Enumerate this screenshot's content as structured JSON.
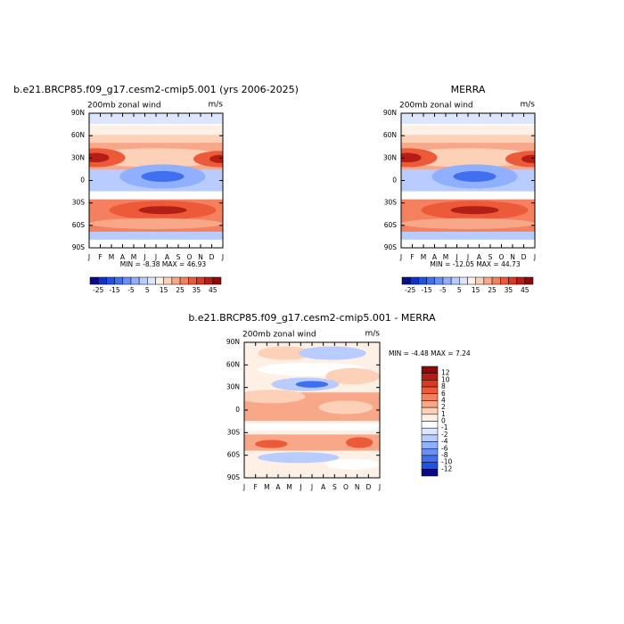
{
  "chart_data": [
    {
      "type": "contour",
      "title": "b.e21.BRCP85.f09_g17.cesm2-cmip5.001 (yrs 2006-2025)",
      "subtitle": "200mb zonal wind",
      "units": "m/s",
      "categories": [
        "J",
        "F",
        "M",
        "A",
        "M",
        "J",
        "J",
        "A",
        "S",
        "O",
        "N",
        "D",
        "J"
      ],
      "ylim": [
        -90,
        90
      ],
      "yticks": [
        {
          "value": 90,
          "label": "90N"
        },
        {
          "value": 60,
          "label": "60N"
        },
        {
          "value": 30,
          "label": "30N"
        },
        0,
        {
          "value": -30,
          "label": "30S"
        },
        {
          "value": -60,
          "label": "60S"
        },
        {
          "value": -90,
          "label": "90S"
        }
      ],
      "stats": {
        "min_label": "MIN =",
        "min": -8.38,
        "max_label": "MAX =",
        "max": 46.93
      },
      "colorbar": {
        "orientation": "horizontal",
        "labels": [
          -25,
          -15,
          -5,
          5,
          15,
          25,
          35,
          45
        ],
        "colors": [
          "#0a0a8c",
          "#1030c8",
          "#2050e8",
          "#4070f0",
          "#6a90f8",
          "#90b0ff",
          "#b8ccff",
          "#dce6ff",
          "#fff0e6",
          "#fdd0b8",
          "#f8a888",
          "#f58060",
          "#ec5a3a",
          "#d63a22",
          "#b41e14",
          "#8c0a0a"
        ]
      }
    },
    {
      "type": "contour",
      "title": "MERRA",
      "subtitle": "200mb zonal wind",
      "units": "m/s",
      "categories": [
        "J",
        "F",
        "M",
        "A",
        "M",
        "J",
        "J",
        "A",
        "S",
        "O",
        "N",
        "D",
        "J"
      ],
      "ylim": [
        -90,
        90
      ],
      "yticks": [
        {
          "value": 90,
          "label": "90N"
        },
        {
          "value": 60,
          "label": "60N"
        },
        {
          "value": 30,
          "label": "30N"
        },
        0,
        {
          "value": -30,
          "label": "30S"
        },
        {
          "value": -60,
          "label": "60S"
        },
        {
          "value": -90,
          "label": "90S"
        }
      ],
      "stats": {
        "min_label": "MIN =",
        "min": -12.05,
        "max_label": "MAX =",
        "max": 44.73
      },
      "colorbar": {
        "orientation": "horizontal",
        "labels": [
          -25,
          -15,
          -5,
          5,
          15,
          25,
          35,
          45
        ],
        "colors": [
          "#0a0a8c",
          "#1030c8",
          "#2050e8",
          "#4070f0",
          "#6a90f8",
          "#90b0ff",
          "#b8ccff",
          "#dce6ff",
          "#fff0e6",
          "#fdd0b8",
          "#f8a888",
          "#f58060",
          "#ec5a3a",
          "#d63a22",
          "#b41e14",
          "#8c0a0a"
        ]
      }
    },
    {
      "type": "contour",
      "title": "b.e21.BRCP85.f09_g17.cesm2-cmip5.001 - MERRA",
      "subtitle": "200mb zonal wind",
      "units": "m/s",
      "categories": [
        "J",
        "F",
        "M",
        "A",
        "M",
        "J",
        "J",
        "A",
        "S",
        "O",
        "N",
        "D",
        "J"
      ],
      "ylim": [
        -90,
        90
      ],
      "yticks": [
        {
          "value": 90,
          "label": "90N"
        },
        {
          "value": 60,
          "label": "60N"
        },
        {
          "value": 30,
          "label": "30N"
        },
        0,
        {
          "value": -30,
          "label": "30S"
        },
        {
          "value": -60,
          "label": "60S"
        },
        {
          "value": -90,
          "label": "90S"
        }
      ],
      "stats": {
        "min_label": "MIN =",
        "min": -4.48,
        "max_label": "MAX =",
        "max": 7.24
      },
      "colorbar": {
        "orientation": "vertical",
        "labels": [
          12,
          10,
          8,
          6,
          4,
          2,
          1,
          0,
          -1,
          -2,
          -4,
          -6,
          -8,
          -10,
          -12
        ],
        "colors": [
          "#8c0a0a",
          "#b41e14",
          "#d63a22",
          "#ec5a3a",
          "#f58060",
          "#f8a888",
          "#fdd0b8",
          "#fff0e6",
          "#ffffff",
          "#dce6ff",
          "#b8ccff",
          "#90b0ff",
          "#6a90f8",
          "#4070f0",
          "#2050e8",
          "#0a0a8c"
        ]
      }
    }
  ]
}
